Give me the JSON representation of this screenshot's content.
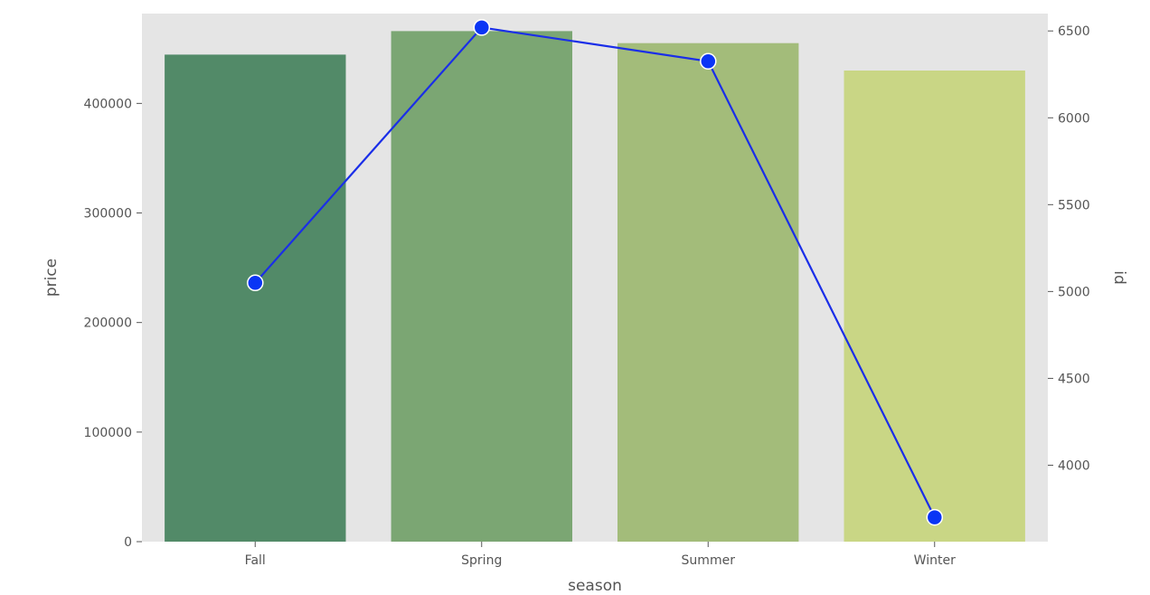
{
  "chart_data": {
    "type": "bar",
    "categories": [
      "Fall",
      "Spring",
      "Summer",
      "Winter"
    ],
    "xlabel": "season",
    "bars": {
      "ylabel": "price",
      "values": [
        444500,
        466000,
        455000,
        430000
      ],
      "ylim": [
        0,
        482000
      ],
      "yticks": [
        0,
        100000,
        200000,
        300000,
        400000
      ],
      "colors": [
        "#528a68",
        "#7ba673",
        "#a3bc7a",
        "#c9d685"
      ]
    },
    "line": {
      "ylabel": "id",
      "type": "line",
      "values": [
        5050,
        6520,
        6325,
        3700
      ],
      "ylim": [
        3560,
        6600
      ],
      "yticks": [
        4000,
        4500,
        5000,
        5500,
        6000,
        6500
      ],
      "color": "#1a2ee8",
      "marker_color": "#0a35f5"
    },
    "grid": false,
    "background": "#e5e5e5",
    "xticks": [
      "Fall",
      "Spring",
      "Summer",
      "Winter"
    ],
    "ytick_labels_left": [
      "0",
      "100000",
      "200000",
      "300000",
      "400000"
    ],
    "ytick_labels_right": [
      "4000",
      "4500",
      "5000",
      "5500",
      "6000",
      "6500"
    ]
  }
}
